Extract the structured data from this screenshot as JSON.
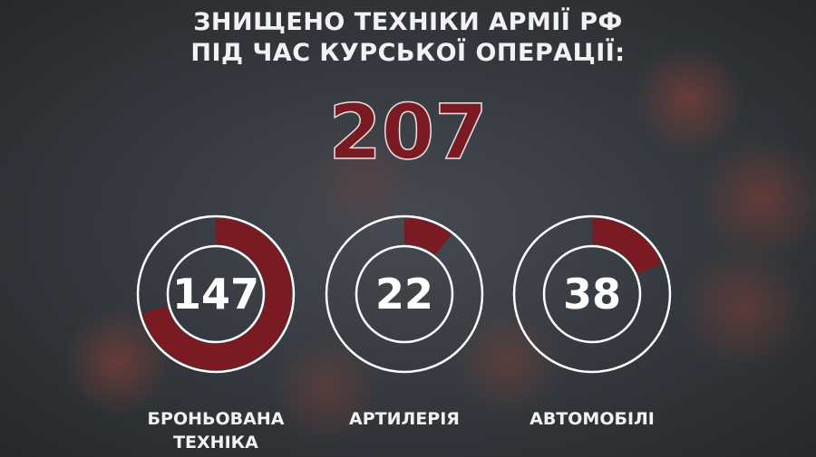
{
  "title_line1": "ЗНИЩЕНО ТЕХНІКИ АРМІЇ РФ",
  "title_line2": "ПІД ЧАС КУРСЬКОЇ ОПЕРАЦІЇ:",
  "total": "207",
  "colors": {
    "accent": "#7a1a22",
    "ring": "#ffffff",
    "text": "#f2f2f2"
  },
  "chart_data": {
    "type": "donut",
    "total": 207,
    "categories": [
      "БРОНЬОВАНА ТЕХНІКА",
      "АРТИЛЕРІЯ",
      "АВТОМОБІЛІ"
    ],
    "values": [
      147,
      22,
      38
    ],
    "value_labels": [
      "147",
      "22",
      "38"
    ],
    "label_lines": [
      [
        "БРОНЬОВАНА",
        "ТЕХНІКА"
      ],
      [
        "АРТИЛЕРІЯ"
      ],
      [
        "АВТОМОБІЛІ"
      ]
    ]
  }
}
